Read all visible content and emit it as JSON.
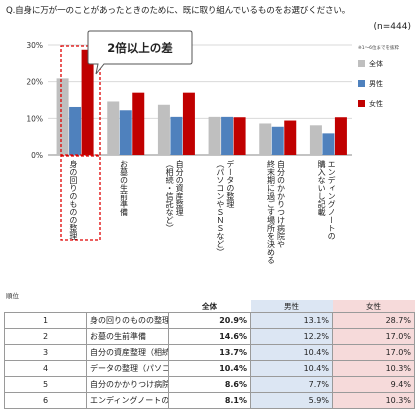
{
  "question": "Q.自身に万が一のことがあったときのために、既に取り組んでいるものをお選びください。",
  "sample": "(n=444)",
  "callout": "2倍以上の差",
  "legend_note": "※1～6位までを抜粋",
  "colors": {
    "total": "#bfbfbf",
    "male": "#4f81bd",
    "female": "#c00000",
    "highlight": "#e00000"
  },
  "chart_data": {
    "type": "bar",
    "categories": [
      "身の回りのものの整理",
      "お墓の生前準備",
      "自分の資産整理（相続・信託など）",
      "データの整理（パソコンやSNSなど）",
      "自分のかかりつけ病院や終末期に過ごす場所を決める",
      "エンディングノートの購入ないし記載"
    ],
    "category_lines": [
      [
        "身の回りのものの整理"
      ],
      [
        "お墓の生前準備"
      ],
      [
        "自分の資産整理",
        "（相続・信託など）"
      ],
      [
        "データの整理",
        "（パソコンやＳＮＳなど）"
      ],
      [
        "自分のかかりつけ病院や",
        "終末期に過ごす場所を決める"
      ],
      [
        "エンディングノートの",
        "購入ないし記載"
      ]
    ],
    "series": [
      {
        "name": "全体",
        "values": [
          20.9,
          14.6,
          13.7,
          10.4,
          8.6,
          8.1
        ]
      },
      {
        "name": "男性",
        "values": [
          13.1,
          12.2,
          10.4,
          10.4,
          7.7,
          5.9
        ]
      },
      {
        "name": "女性",
        "values": [
          28.7,
          17.0,
          17.0,
          10.3,
          9.4,
          10.3
        ]
      }
    ],
    "yticks": [
      "0%",
      "10%",
      "20%",
      "30%"
    ],
    "ylim": [
      0,
      30
    ],
    "grid": true,
    "legend": "right"
  },
  "table": {
    "header_rank": "順位",
    "header_total": "全体",
    "header_male": "男性",
    "header_female": "女性",
    "rows": [
      {
        "rank": "1",
        "item": "身の回りのものの整理",
        "total": "20.9%",
        "male": "13.1%",
        "female": "28.7%"
      },
      {
        "rank": "2",
        "item": "お墓の生前準備",
        "total": "14.6%",
        "male": "12.2%",
        "female": "17.0%"
      },
      {
        "rank": "3",
        "item": "自分の資産整理（相続・信託など）",
        "total": "13.7%",
        "male": "10.4%",
        "female": "17.0%"
      },
      {
        "rank": "4",
        "item": "データの整理（パソコンや SNS など）",
        "total": "10.4%",
        "male": "10.4%",
        "female": "10.3%"
      },
      {
        "rank": "5",
        "item": "自分のかかりつけ病院や終末期に過ごす場所を決める",
        "total": "8.6%",
        "male": "7.7%",
        "female": "9.4%"
      },
      {
        "rank": "6",
        "item": "エンディングノートの購入ないし記載",
        "total": "8.1%",
        "male": "5.9%",
        "female": "10.3%"
      }
    ]
  }
}
